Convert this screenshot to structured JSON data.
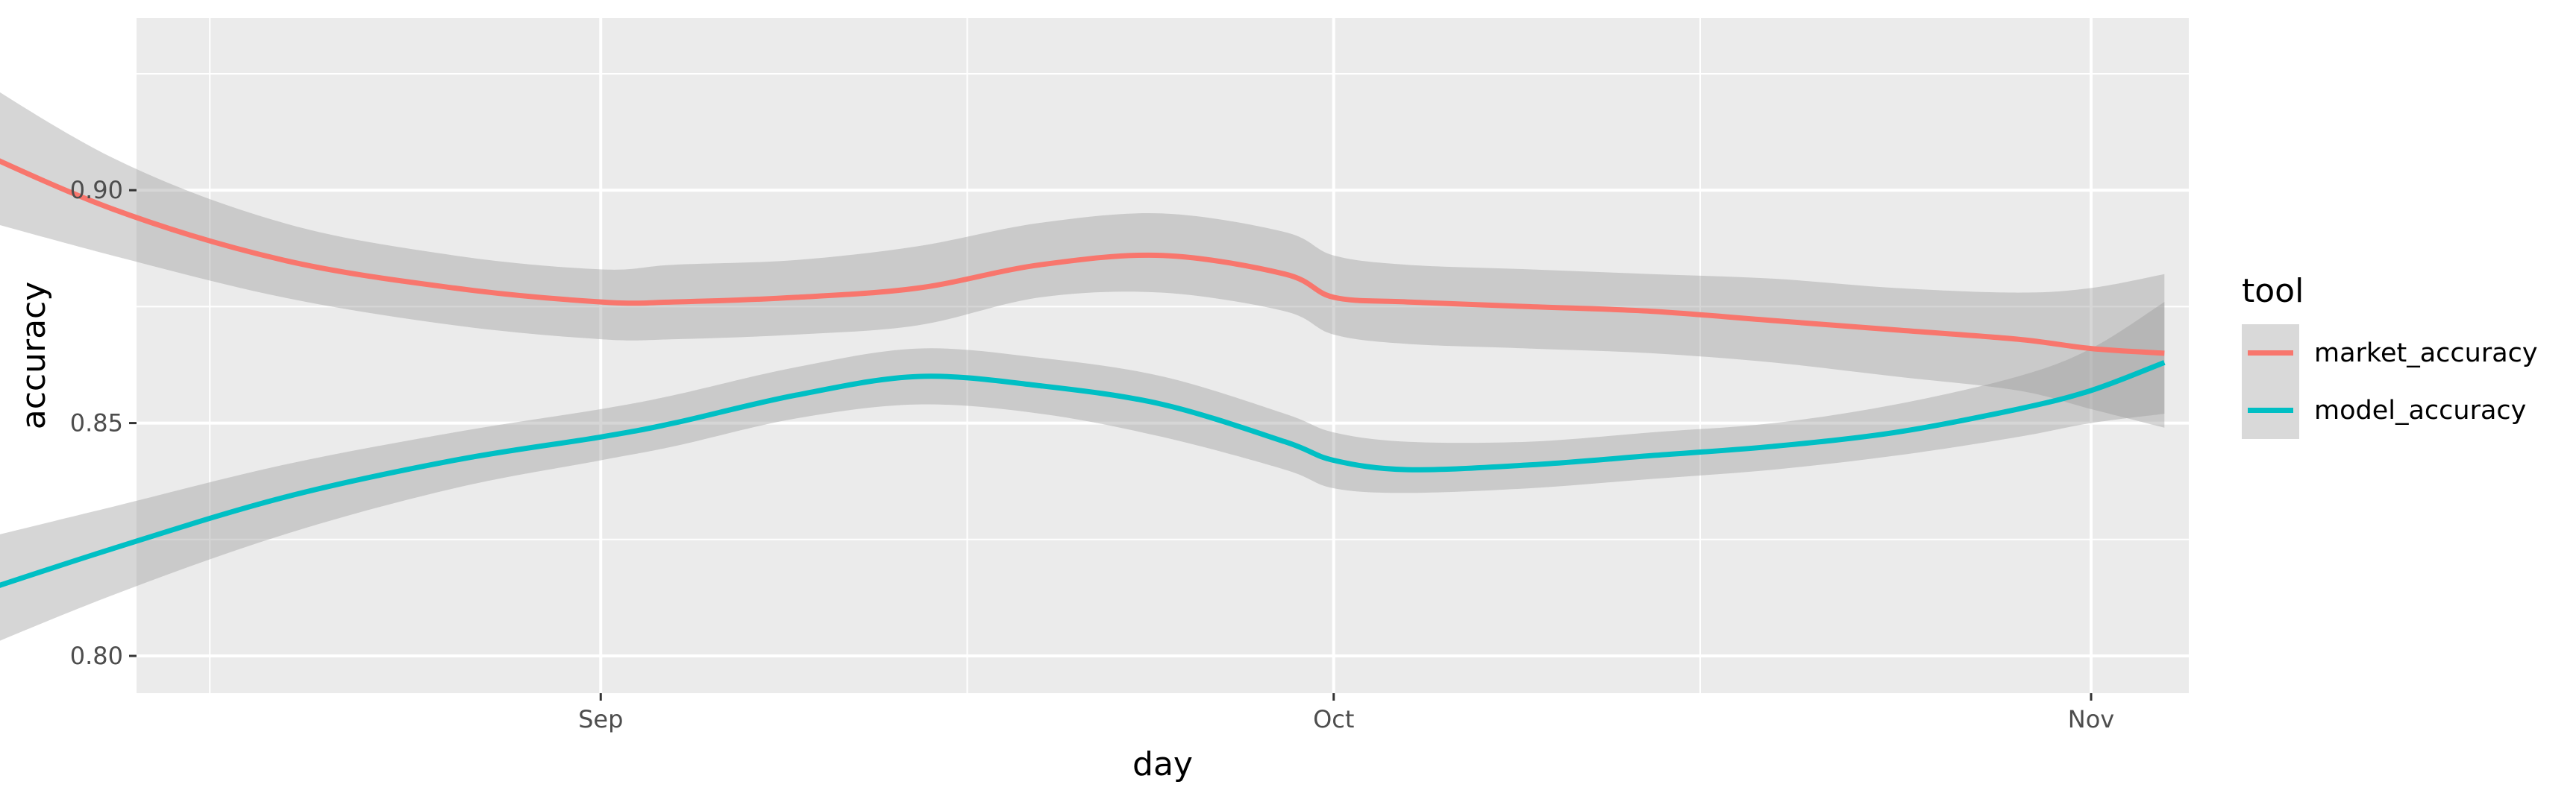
{
  "chart_data": {
    "type": "line",
    "title": "",
    "xlabel": "day",
    "ylabel": "accuracy",
    "x_axis": {
      "range": [
        "2018-08-13",
        "2018-11-05"
      ],
      "ticks": [
        {
          "date": "2018-09-01",
          "label": "Sep"
        },
        {
          "date": "2018-10-01",
          "label": "Oct"
        },
        {
          "date": "2018-11-01",
          "label": "Nov"
        }
      ],
      "minor_gridlines": [
        "2018-08-16",
        "2018-09-16",
        "2018-10-16"
      ]
    },
    "y_axis": {
      "range": [
        0.792,
        0.937
      ],
      "ticks": [
        0.8,
        0.85,
        0.9
      ],
      "tick_labels": [
        "0.80",
        "0.85",
        "0.90"
      ],
      "minor_gridlines": [
        0.825,
        0.875,
        0.925
      ]
    },
    "grid": true,
    "legend": {
      "title": "tool",
      "position": "right"
    },
    "series": [
      {
        "name": "market_accuracy",
        "color": "#F8766D",
        "x": [
          "2018-08-05",
          "2018-08-12",
          "2018-08-19",
          "2018-08-26",
          "2018-09-01",
          "2018-09-04",
          "2018-09-09",
          "2018-09-14",
          "2018-09-19",
          "2018-09-24",
          "2018-09-29",
          "2018-10-01",
          "2018-10-04",
          "2018-10-09",
          "2018-10-14",
          "2018-10-19",
          "2018-10-24",
          "2018-10-29",
          "2018-11-01",
          "2018-11-04"
        ],
        "y": [
          0.912,
          0.896,
          0.885,
          0.879,
          0.876,
          0.876,
          0.877,
          0.879,
          0.884,
          0.886,
          0.882,
          0.877,
          0.876,
          0.875,
          0.874,
          0.872,
          0.87,
          0.868,
          0.866,
          0.865
        ],
        "lower": [
          0.896,
          0.886,
          0.877,
          0.871,
          0.868,
          0.868,
          0.869,
          0.871,
          0.877,
          0.878,
          0.874,
          0.869,
          0.867,
          0.866,
          0.865,
          0.863,
          0.86,
          0.857,
          0.853,
          0.849
        ],
        "upper": [
          0.929,
          0.907,
          0.893,
          0.886,
          0.883,
          0.884,
          0.885,
          0.888,
          0.893,
          0.895,
          0.891,
          0.886,
          0.884,
          0.883,
          0.882,
          0.881,
          0.879,
          0.878,
          0.879,
          0.882
        ]
      },
      {
        "name": "model_accuracy",
        "color": "#00BFC4",
        "x": [
          "2018-08-05",
          "2018-08-12",
          "2018-08-19",
          "2018-08-26",
          "2018-09-01",
          "2018-09-04",
          "2018-09-09",
          "2018-09-14",
          "2018-09-19",
          "2018-09-24",
          "2018-09-29",
          "2018-10-01",
          "2018-10-04",
          "2018-10-09",
          "2018-10-14",
          "2018-10-19",
          "2018-10-24",
          "2018-10-29",
          "2018-11-01",
          "2018-11-04"
        ],
        "y": [
          0.811,
          0.823,
          0.834,
          0.842,
          0.847,
          0.85,
          0.856,
          0.86,
          0.858,
          0.854,
          0.846,
          0.842,
          0.84,
          0.841,
          0.843,
          0.845,
          0.848,
          0.853,
          0.857,
          0.863
        ],
        "lower": [
          0.798,
          0.813,
          0.826,
          0.836,
          0.842,
          0.845,
          0.851,
          0.854,
          0.852,
          0.847,
          0.84,
          0.836,
          0.835,
          0.836,
          0.838,
          0.84,
          0.843,
          0.847,
          0.85,
          0.852
        ],
        "upper": [
          0.823,
          0.832,
          0.841,
          0.848,
          0.853,
          0.856,
          0.862,
          0.866,
          0.864,
          0.86,
          0.852,
          0.848,
          0.846,
          0.846,
          0.848,
          0.85,
          0.854,
          0.86,
          0.866,
          0.876
        ]
      }
    ]
  }
}
